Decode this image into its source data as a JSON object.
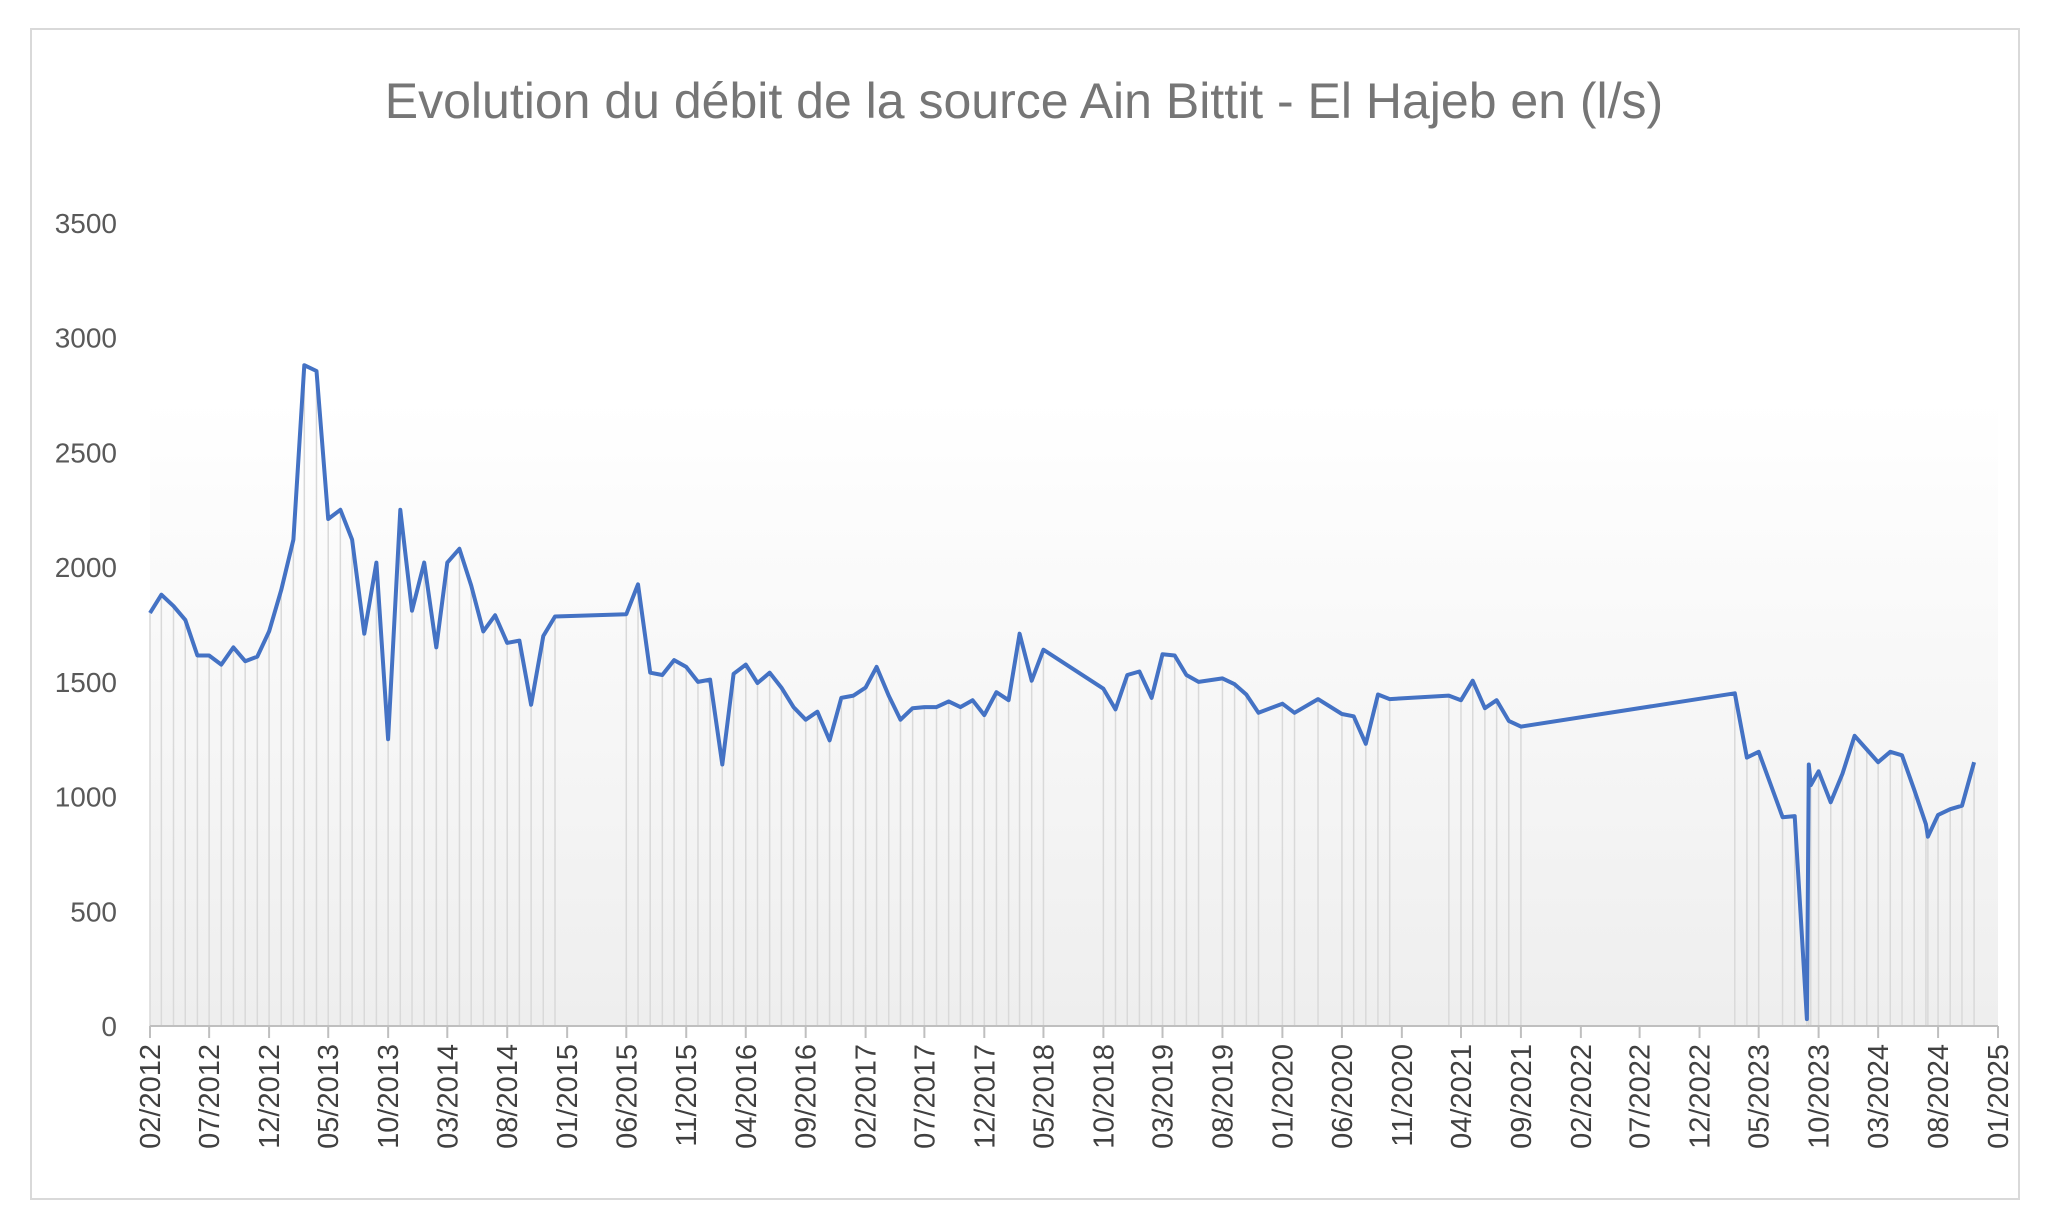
{
  "chart_data": {
    "type": "line",
    "title": "Evolution du débit de la source Ain Bittit - El Hajeb en (l/s)",
    "xlabel": "",
    "ylabel": "",
    "ylim": [
      0,
      3500
    ],
    "y_ticks": [
      0,
      500,
      1000,
      1500,
      2000,
      2500,
      3000,
      3500
    ],
    "x_range": [
      "2012-02-01",
      "2025-01-01"
    ],
    "x_ticks": [
      "02/2012",
      "07/2012",
      "12/2012",
      "05/2013",
      "10/2013",
      "03/2014",
      "08/2014",
      "01/2015",
      "06/2015",
      "11/2015",
      "04/2016",
      "09/2016",
      "02/2017",
      "07/2017",
      "12/2017",
      "05/2018",
      "10/2018",
      "03/2019",
      "08/2019",
      "01/2020",
      "06/2020",
      "11/2020",
      "04/2021",
      "09/2021",
      "02/2022",
      "07/2022",
      "12/2022",
      "05/2023",
      "10/2023",
      "03/2024",
      "08/2024",
      "01/2025"
    ],
    "grid": "none",
    "legend": "none",
    "drop_lines": true,
    "colors": {
      "line": "#4472c4",
      "drop_line": "#d9d9d9",
      "axis": "#bfbfbf",
      "title": "#767676"
    },
    "series": [
      {
        "points": [
          [
            "2012-02-01",
            1800
          ],
          [
            "2012-03-01",
            1880
          ],
          [
            "2012-04-01",
            1830
          ],
          [
            "2012-05-01",
            1770
          ],
          [
            "2012-06-01",
            1615
          ],
          [
            "2012-07-01",
            1615
          ],
          [
            "2012-08-01",
            1575
          ],
          [
            "2012-09-01",
            1650
          ],
          [
            "2012-10-01",
            1590
          ],
          [
            "2012-11-01",
            1610
          ],
          [
            "2012-12-01",
            1720
          ],
          [
            "2013-01-01",
            1900
          ],
          [
            "2013-02-01",
            2120
          ],
          [
            "2013-03-01",
            2880
          ],
          [
            "2013-04-01",
            2855
          ],
          [
            "2013-05-01",
            2210
          ],
          [
            "2013-06-01",
            2250
          ],
          [
            "2013-07-01",
            2120
          ],
          [
            "2013-08-01",
            1710
          ],
          [
            "2013-09-01",
            2020
          ],
          [
            "2013-10-01",
            1250
          ],
          [
            "2013-11-01",
            2250
          ],
          [
            "2013-12-01",
            1810
          ],
          [
            "2014-01-01",
            2020
          ],
          [
            "2014-02-01",
            1650
          ],
          [
            "2014-03-01",
            2020
          ],
          [
            "2014-04-01",
            2080
          ],
          [
            "2014-05-01",
            1920
          ],
          [
            "2014-06-01",
            1720
          ],
          [
            "2014-07-01",
            1790
          ],
          [
            "2014-08-01",
            1670
          ],
          [
            "2014-09-01",
            1680
          ],
          [
            "2014-10-01",
            1400
          ],
          [
            "2014-11-01",
            1700
          ],
          [
            "2014-12-01",
            1785
          ],
          [
            "2015-06-01",
            1795
          ],
          [
            "2015-07-01",
            1925
          ],
          [
            "2015-08-01",
            1540
          ],
          [
            "2015-09-01",
            1530
          ],
          [
            "2015-10-01",
            1595
          ],
          [
            "2015-11-01",
            1565
          ],
          [
            "2015-12-01",
            1500
          ],
          [
            "2016-01-01",
            1510
          ],
          [
            "2016-02-01",
            1140
          ],
          [
            "2016-03-01",
            1535
          ],
          [
            "2016-04-01",
            1575
          ],
          [
            "2016-05-01",
            1495
          ],
          [
            "2016-06-01",
            1540
          ],
          [
            "2016-07-01",
            1475
          ],
          [
            "2016-08-01",
            1390
          ],
          [
            "2016-09-01",
            1335
          ],
          [
            "2016-10-01",
            1370
          ],
          [
            "2016-11-01",
            1245
          ],
          [
            "2016-12-01",
            1430
          ],
          [
            "2017-01-01",
            1440
          ],
          [
            "2017-02-01",
            1475
          ],
          [
            "2017-03-01",
            1565
          ],
          [
            "2017-04-01",
            1440
          ],
          [
            "2017-05-01",
            1335
          ],
          [
            "2017-06-01",
            1385
          ],
          [
            "2017-07-01",
            1390
          ],
          [
            "2017-08-01",
            1390
          ],
          [
            "2017-09-01",
            1415
          ],
          [
            "2017-10-01",
            1390
          ],
          [
            "2017-11-01",
            1420
          ],
          [
            "2017-12-01",
            1355
          ],
          [
            "2018-01-01",
            1455
          ],
          [
            "2018-02-01",
            1420
          ],
          [
            "2018-03-01",
            1710
          ],
          [
            "2018-04-01",
            1505
          ],
          [
            "2018-05-01",
            1640
          ],
          [
            "2018-10-01",
            1470
          ],
          [
            "2018-11-01",
            1380
          ],
          [
            "2018-12-01",
            1530
          ],
          [
            "2019-01-01",
            1545
          ],
          [
            "2019-02-01",
            1430
          ],
          [
            "2019-03-01",
            1620
          ],
          [
            "2019-04-01",
            1615
          ],
          [
            "2019-05-01",
            1530
          ],
          [
            "2019-06-01",
            1500
          ],
          [
            "2019-08-01",
            1515
          ],
          [
            "2019-09-01",
            1490
          ],
          [
            "2019-10-01",
            1445
          ],
          [
            "2019-11-01",
            1365
          ],
          [
            "2020-01-01",
            1405
          ],
          [
            "2020-02-01",
            1365
          ],
          [
            "2020-04-01",
            1425
          ],
          [
            "2020-06-01",
            1360
          ],
          [
            "2020-07-01",
            1350
          ],
          [
            "2020-08-01",
            1230
          ],
          [
            "2020-09-01",
            1445
          ],
          [
            "2020-10-01",
            1425
          ],
          [
            "2021-03-01",
            1440
          ],
          [
            "2021-04-01",
            1420
          ],
          [
            "2021-05-01",
            1505
          ],
          [
            "2021-06-01",
            1385
          ],
          [
            "2021-07-01",
            1420
          ],
          [
            "2021-08-01",
            1330
          ],
          [
            "2021-09-01",
            1305
          ],
          [
            "2023-03-01",
            1450
          ],
          [
            "2023-04-01",
            1170
          ],
          [
            "2023-05-01",
            1195
          ],
          [
            "2023-07-01",
            910
          ],
          [
            "2023-08-01",
            915
          ],
          [
            "2023-09-01",
            30
          ],
          [
            "2023-09-06",
            1140
          ],
          [
            "2023-09-11",
            1050
          ],
          [
            "2023-10-01",
            1110
          ],
          [
            "2023-11-01",
            975
          ],
          [
            "2023-12-01",
            1100
          ],
          [
            "2024-01-01",
            1265
          ],
          [
            "2024-02-01",
            1205
          ],
          [
            "2024-03-01",
            1150
          ],
          [
            "2024-04-01",
            1195
          ],
          [
            "2024-05-01",
            1180
          ],
          [
            "2024-06-01",
            1030
          ],
          [
            "2024-07-01",
            880
          ],
          [
            "2024-07-06",
            825
          ],
          [
            "2024-08-01",
            920
          ],
          [
            "2024-09-01",
            945
          ],
          [
            "2024-10-01",
            960
          ],
          [
            "2024-11-01",
            1150
          ]
        ]
      }
    ]
  }
}
